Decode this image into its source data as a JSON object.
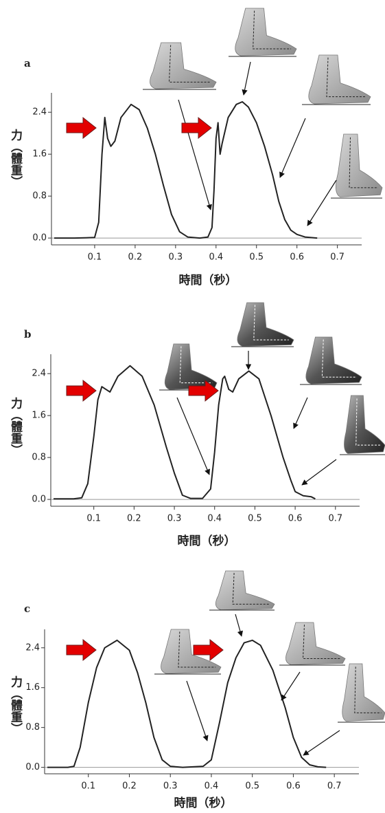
{
  "chart_data": [
    {
      "type": "line",
      "label": "a",
      "xlabel": "時間（秒）",
      "ylabel": "力（體重）",
      "color": "#222222",
      "x": [
        0,
        0.05,
        0.1,
        0.11,
        0.118,
        0.125,
        0.132,
        0.14,
        0.15,
        0.165,
        0.19,
        0.21,
        0.23,
        0.25,
        0.27,
        0.29,
        0.31,
        0.33,
        0.36,
        0.38,
        0.39,
        0.395,
        0.4,
        0.405,
        0.41,
        0.415,
        0.43,
        0.45,
        0.465,
        0.48,
        0.5,
        0.52,
        0.54,
        0.555,
        0.57,
        0.585,
        0.6,
        0.62,
        0.65
      ],
      "values": [
        0,
        0,
        0.01,
        0.3,
        1.6,
        2.3,
        1.9,
        1.75,
        1.85,
        2.3,
        2.55,
        2.45,
        2.1,
        1.6,
        1.0,
        0.45,
        0.12,
        0.02,
        0,
        0.02,
        0.2,
        0.9,
        1.9,
        2.2,
        1.6,
        1.8,
        2.3,
        2.55,
        2.6,
        2.5,
        2.2,
        1.75,
        1.2,
        0.7,
        0.35,
        0.15,
        0.07,
        0.02,
        0
      ],
      "xlim": [
        0,
        0.76
      ],
      "ylim": [
        -0.13,
        2.77
      ],
      "xticks": [
        0.1,
        0.2,
        0.3,
        0.4,
        0.5,
        0.6,
        0.7
      ],
      "yticks": [
        {
          "value": 0,
          "label": "0.0"
        },
        0.8,
        1.6,
        2.4
      ]
    },
    {
      "type": "line",
      "label": "b",
      "xlabel": "時間（秒）",
      "ylabel": "力（體重）",
      "color": "#222222",
      "x": [
        0,
        0.05,
        0.07,
        0.085,
        0.1,
        0.11,
        0.12,
        0.13,
        0.14,
        0.16,
        0.19,
        0.22,
        0.25,
        0.28,
        0.3,
        0.32,
        0.34,
        0.37,
        0.39,
        0.4,
        0.41,
        0.42,
        0.425,
        0.435,
        0.445,
        0.46,
        0.485,
        0.51,
        0.54,
        0.57,
        0.59,
        0.6,
        0.62,
        0.64,
        0.65
      ],
      "values": [
        0.01,
        0.01,
        0.03,
        0.3,
        1.2,
        1.9,
        2.15,
        2.1,
        2.05,
        2.35,
        2.55,
        2.35,
        1.8,
        1.0,
        0.5,
        0.08,
        0.02,
        0.02,
        0.2,
        0.9,
        1.8,
        2.3,
        2.35,
        2.1,
        2.05,
        2.3,
        2.45,
        2.3,
        1.6,
        0.8,
        0.35,
        0.15,
        0.07,
        0.05,
        0.01
      ],
      "xlim": [
        0,
        0.76
      ],
      "ylim": [
        -0.13,
        2.77
      ],
      "xticks": [
        0.1,
        0.2,
        0.3,
        0.4,
        0.5,
        0.6,
        0.7
      ],
      "yticks": [
        {
          "value": 0,
          "label": "0.0"
        },
        0.8,
        1.6,
        2.4
      ]
    },
    {
      "type": "line",
      "label": "c",
      "xlabel": "時間（秒）",
      "ylabel": "力（體重）",
      "color": "#222222",
      "x": [
        0,
        0.05,
        0.065,
        0.08,
        0.1,
        0.12,
        0.14,
        0.17,
        0.2,
        0.22,
        0.24,
        0.26,
        0.28,
        0.3,
        0.33,
        0.38,
        0.4,
        0.42,
        0.44,
        0.46,
        0.48,
        0.5,
        0.52,
        0.55,
        0.58,
        0.6,
        0.62,
        0.64,
        0.66,
        0.68
      ],
      "values": [
        0,
        0,
        0.02,
        0.4,
        1.3,
        2.0,
        2.4,
        2.55,
        2.35,
        1.9,
        1.3,
        0.6,
        0.15,
        0.02,
        0,
        0.02,
        0.15,
        0.9,
        1.7,
        2.2,
        2.5,
        2.55,
        2.45,
        1.95,
        1.2,
        0.6,
        0.2,
        0.05,
        0.01,
        0
      ],
      "xlim": [
        0,
        0.76
      ],
      "ylim": [
        -0.13,
        2.77
      ],
      "xticks": [
        0.1,
        0.2,
        0.3,
        0.4,
        0.5,
        0.6,
        0.7
      ],
      "yticks": [
        {
          "value": 0,
          "label": "0.0"
        },
        0.8,
        1.6,
        2.4
      ]
    }
  ]
}
